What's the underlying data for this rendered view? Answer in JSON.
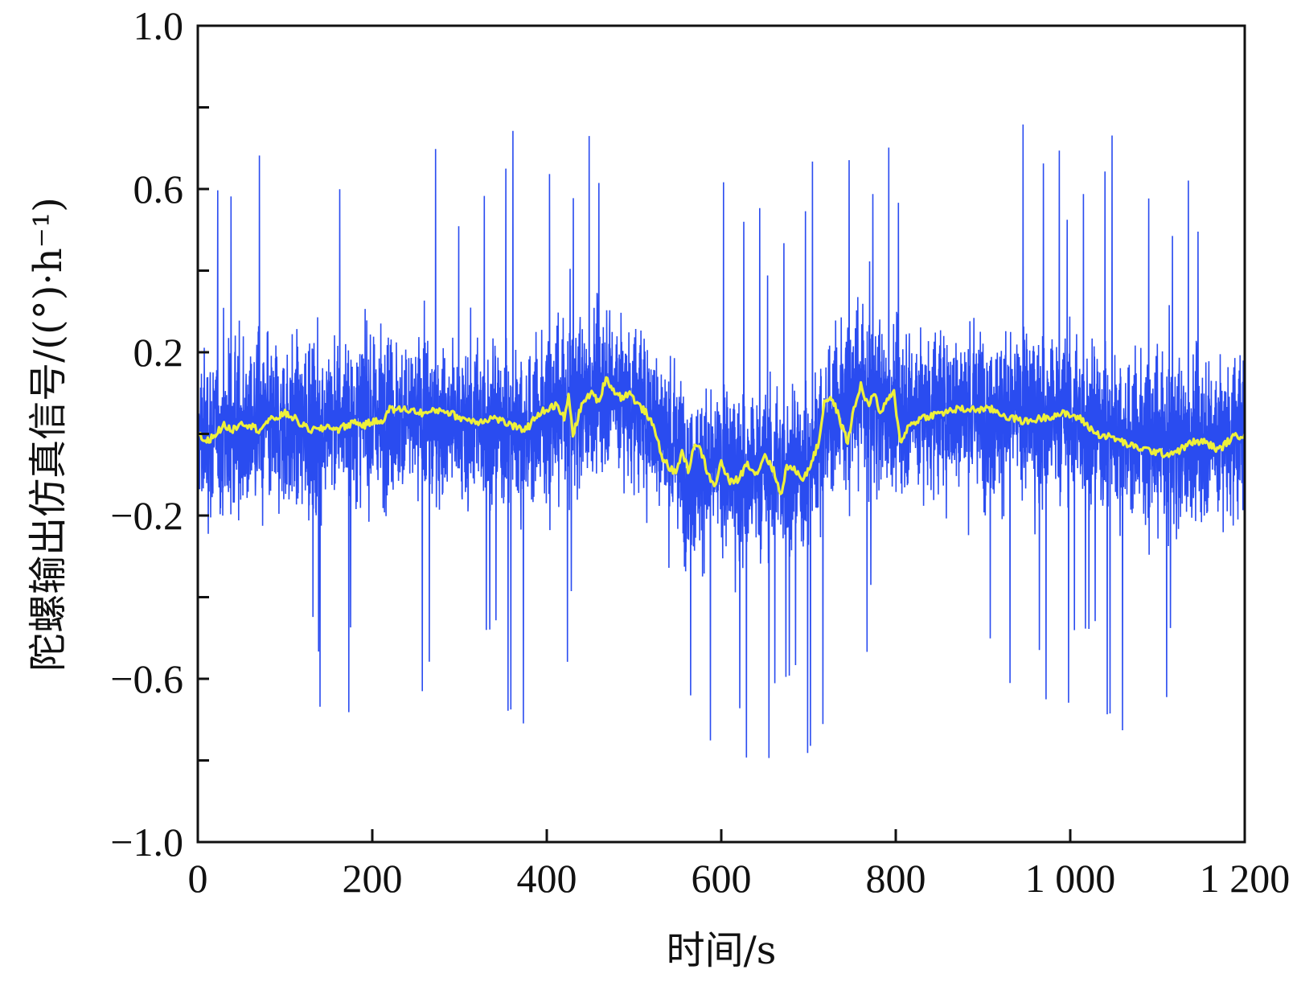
{
  "chart_data": {
    "type": "line",
    "xlabel": "时间/s",
    "ylabel": "陀螺输出仿真信号/((°)·h⁻¹)",
    "xlim": [
      0,
      1200
    ],
    "ylim": [
      -1.0,
      1.0
    ],
    "x_ticks": [
      0,
      200,
      400,
      600,
      800,
      1000,
      1200
    ],
    "x_tick_labels": [
      "0",
      "200",
      "400",
      "600",
      "800",
      "1 000",
      "1 200"
    ],
    "y_ticks": [
      -1.0,
      -0.6,
      -0.2,
      0.2,
      0.6,
      1.0
    ],
    "y_tick_labels": [
      "−1.0",
      "−0.6",
      "−0.2",
      "0.2",
      "0.6",
      "1.0"
    ],
    "y_minor_ticks": [
      -0.8,
      -0.4,
      0.0,
      0.4,
      0.8
    ],
    "grid": false,
    "series": [
      {
        "role": "noisy-signal",
        "color": "#2a4cf0",
        "baseline": [
          [
            0,
            0.0
          ],
          [
            100,
            0.02
          ],
          [
            200,
            0.04
          ],
          [
            300,
            0.03
          ],
          [
            380,
            0.02
          ],
          [
            470,
            0.12
          ],
          [
            520,
            0.04
          ],
          [
            560,
            -0.08
          ],
          [
            640,
            -0.1
          ],
          [
            700,
            -0.08
          ],
          [
            720,
            0.04
          ],
          [
            760,
            0.1
          ],
          [
            800,
            0.06
          ],
          [
            900,
            0.06
          ],
          [
            1000,
            0.04
          ],
          [
            1100,
            -0.02
          ],
          [
            1200,
            0.0
          ]
        ],
        "band_amplitude": 0.25,
        "peak_max": 0.77,
        "peak_min": -0.87
      },
      {
        "role": "filtered-signal",
        "color": "#eef03a",
        "points": [
          [
            0,
            0.0
          ],
          [
            10,
            -0.02
          ],
          [
            20,
            0.0
          ],
          [
            30,
            0.02
          ],
          [
            40,
            0.01
          ],
          [
            50,
            0.03
          ],
          [
            60,
            0.02
          ],
          [
            70,
            0.01
          ],
          [
            80,
            0.03
          ],
          [
            90,
            0.04
          ],
          [
            100,
            0.05
          ],
          [
            110,
            0.04
          ],
          [
            120,
            0.02
          ],
          [
            130,
            0.01
          ],
          [
            140,
            0.01
          ],
          [
            150,
            0.02
          ],
          [
            160,
            0.01
          ],
          [
            170,
            0.02
          ],
          [
            180,
            0.03
          ],
          [
            190,
            0.02
          ],
          [
            200,
            0.03
          ],
          [
            210,
            0.03
          ],
          [
            220,
            0.06
          ],
          [
            240,
            0.06
          ],
          [
            260,
            0.05
          ],
          [
            280,
            0.06
          ],
          [
            300,
            0.04
          ],
          [
            320,
            0.03
          ],
          [
            340,
            0.04
          ],
          [
            360,
            0.02
          ],
          [
            370,
            0.01
          ],
          [
            380,
            0.02
          ],
          [
            390,
            0.05
          ],
          [
            400,
            0.06
          ],
          [
            410,
            0.07
          ],
          [
            420,
            0.04
          ],
          [
            425,
            0.09
          ],
          [
            430,
            0.0
          ],
          [
            440,
            0.07
          ],
          [
            450,
            0.1
          ],
          [
            460,
            0.08
          ],
          [
            468,
            0.14
          ],
          [
            475,
            0.11
          ],
          [
            485,
            0.09
          ],
          [
            495,
            0.1
          ],
          [
            505,
            0.07
          ],
          [
            515,
            0.05
          ],
          [
            525,
            0.0
          ],
          [
            533,
            -0.06
          ],
          [
            540,
            -0.08
          ],
          [
            548,
            -0.1
          ],
          [
            555,
            -0.04
          ],
          [
            562,
            -0.09
          ],
          [
            570,
            -0.02
          ],
          [
            578,
            -0.05
          ],
          [
            585,
            -0.1
          ],
          [
            592,
            -0.13
          ],
          [
            600,
            -0.07
          ],
          [
            610,
            -0.12
          ],
          [
            620,
            -0.11
          ],
          [
            630,
            -0.07
          ],
          [
            640,
            -0.1
          ],
          [
            650,
            -0.05
          ],
          [
            660,
            -0.09
          ],
          [
            668,
            -0.15
          ],
          [
            675,
            -0.08
          ],
          [
            685,
            -0.09
          ],
          [
            695,
            -0.11
          ],
          [
            705,
            -0.06
          ],
          [
            712,
            -0.02
          ],
          [
            718,
            0.08
          ],
          [
            725,
            0.09
          ],
          [
            732,
            0.06
          ],
          [
            738,
            0.02
          ],
          [
            745,
            -0.02
          ],
          [
            752,
            0.06
          ],
          [
            760,
            0.12
          ],
          [
            768,
            0.07
          ],
          [
            775,
            0.1
          ],
          [
            782,
            0.05
          ],
          [
            790,
            0.08
          ],
          [
            798,
            0.1
          ],
          [
            805,
            -0.02
          ],
          [
            815,
            0.02
          ],
          [
            830,
            0.04
          ],
          [
            850,
            0.05
          ],
          [
            870,
            0.06
          ],
          [
            890,
            0.06
          ],
          [
            910,
            0.06
          ],
          [
            930,
            0.04
          ],
          [
            950,
            0.03
          ],
          [
            970,
            0.04
          ],
          [
            990,
            0.05
          ],
          [
            1010,
            0.04
          ],
          [
            1030,
            0.0
          ],
          [
            1050,
            -0.01
          ],
          [
            1070,
            -0.03
          ],
          [
            1090,
            -0.04
          ],
          [
            1110,
            -0.05
          ],
          [
            1125,
            -0.04
          ],
          [
            1140,
            -0.02
          ],
          [
            1155,
            -0.02
          ],
          [
            1170,
            -0.04
          ],
          [
            1185,
            -0.01
          ],
          [
            1200,
            0.0
          ]
        ]
      }
    ]
  }
}
